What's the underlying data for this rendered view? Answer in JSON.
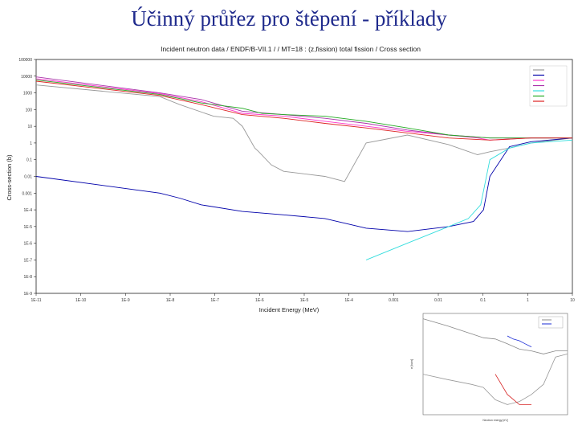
{
  "slide": {
    "title": "Účinný průřez pro štěpení - příklady"
  },
  "chart_data": [
    {
      "type": "line",
      "title": "Incident neutron data / ENDF/B-VII.1 / / MT=18 : (z,fission) total fission / Cross section",
      "xlabel": "Incident Energy (MeV)",
      "ylabel": "Cross-section (b)",
      "xscale": "log",
      "yscale": "log",
      "xlim": [
        1e-11,
        100
      ],
      "ylim": [
        1e-09,
        100000
      ],
      "legend_position": "top-right",
      "grid": false,
      "xtick_labels": [
        "1E-11",
        "1E-10",
        "1E-9",
        "1E-8",
        "1E-7",
        "1E-6",
        "1E-5",
        "1E-4",
        "0.001",
        "0.01",
        "0.1",
        "1",
        "10"
      ],
      "ytick_labels": [
        "1E-9",
        "1E-8",
        "1E-7",
        "1E-6",
        "1E-5",
        "1E-4",
        "0.001",
        "0.01",
        "0.1",
        "1",
        "10",
        "100",
        "1000",
        "10000",
        "100000"
      ],
      "series": [
        {
          "name": "",
          "color": "#999999",
          "points": [
            [
              1e-11,
              3000
            ],
            [
              1e-08,
              600
            ],
            [
              3e-08,
              200
            ],
            [
              2e-07,
              40
            ],
            [
              6e-07,
              30
            ],
            [
              1e-06,
              10
            ],
            [
              2e-06,
              0.5
            ],
            [
              2.5e-06,
              0.3
            ],
            [
              5e-06,
              0.05
            ],
            [
              1e-05,
              0.02
            ],
            [
              0.0001,
              0.01
            ],
            [
              0.0003,
              0.005
            ],
            [
              0.001,
              1
            ],
            [
              0.01,
              3
            ],
            [
              0.1,
              0.8
            ],
            [
              0.5,
              0.2
            ],
            [
              1,
              0.3
            ],
            [
              3,
              0.5
            ],
            [
              10,
              1
            ],
            [
              100,
              2
            ]
          ]
        },
        {
          "name": "",
          "color": "#0000aa",
          "points": [
            [
              1e-11,
              0.01
            ],
            [
              1e-08,
              0.001
            ],
            [
              3e-08,
              0.0005
            ],
            [
              1e-07,
              0.0002
            ],
            [
              1e-06,
              8e-05
            ],
            [
              1e-05,
              5e-05
            ],
            [
              0.0001,
              3e-05
            ],
            [
              0.001,
              8e-06
            ],
            [
              0.01,
              5e-06
            ],
            [
              0.1,
              1e-05
            ],
            [
              0.4,
              2e-05
            ],
            [
              0.7,
              0.0001
            ],
            [
              1,
              0.01
            ],
            [
              3,
              0.6
            ],
            [
              10,
              1.2
            ],
            [
              100,
              2
            ]
          ]
        },
        {
          "name": "",
          "color": "#ff33cc",
          "points": [
            [
              1e-11,
              7000
            ],
            [
              1e-08,
              900
            ],
            [
              1e-07,
              300
            ],
            [
              1e-06,
              60
            ],
            [
              1e-05,
              40
            ],
            [
              0.0001,
              20
            ],
            [
              0.001,
              10
            ],
            [
              0.01,
              5
            ],
            [
              0.1,
              3
            ],
            [
              0.5,
              2
            ],
            [
              1,
              1.5
            ],
            [
              10,
              2
            ],
            [
              100,
              2
            ]
          ]
        },
        {
          "name": "",
          "color": "#aa33aa",
          "points": [
            [
              1e-11,
              9000
            ],
            [
              1e-08,
              1000
            ],
            [
              1e-07,
              400
            ],
            [
              1e-06,
              80
            ],
            [
              1e-05,
              50
            ],
            [
              0.0001,
              30
            ],
            [
              0.001,
              15
            ],
            [
              0.01,
              6
            ],
            [
              0.1,
              3
            ],
            [
              1,
              2
            ],
            [
              10,
              2
            ],
            [
              100,
              2
            ]
          ]
        },
        {
          "name": "",
          "color": "#33dddd",
          "points": [
            [
              0.001,
              1e-07
            ],
            [
              0.01,
              1e-06
            ],
            [
              0.1,
              1e-05
            ],
            [
              0.3,
              3e-05
            ],
            [
              0.6,
              0.0002
            ],
            [
              1,
              0.1
            ],
            [
              3,
              0.5
            ],
            [
              10,
              1
            ],
            [
              100,
              1.5
            ]
          ]
        },
        {
          "name": "",
          "color": "#22aa22",
          "points": [
            [
              1e-11,
              6000
            ],
            [
              1e-08,
              800
            ],
            [
              1e-07,
              250
            ],
            [
              1e-06,
              120
            ],
            [
              3e-06,
              60
            ],
            [
              1e-05,
              50
            ],
            [
              0.0001,
              40
            ],
            [
              0.001,
              20
            ],
            [
              0.01,
              8
            ],
            [
              0.1,
              3
            ],
            [
              1,
              2
            ],
            [
              10,
              2
            ],
            [
              100,
              2
            ]
          ]
        },
        {
          "name": "",
          "color": "#dd2222",
          "points": [
            [
              1e-11,
              5000
            ],
            [
              1e-08,
              700
            ],
            [
              1e-07,
              200
            ],
            [
              1e-06,
              50
            ],
            [
              1e-05,
              30
            ],
            [
              0.0001,
              15
            ],
            [
              0.001,
              8
            ],
            [
              0.01,
              4
            ],
            [
              0.1,
              2
            ],
            [
              1,
              1.5
            ],
            [
              10,
              2
            ],
            [
              100,
              2
            ]
          ]
        }
      ]
    },
    {
      "type": "line",
      "title": "",
      "xlabel": "Neutron energy [eV]",
      "ylabel": "σ [barn]",
      "xscale": "log",
      "yscale": "log",
      "legend_position": "top-right",
      "series": [
        {
          "name": "",
          "color": "#888888",
          "points": [
            [
              1e-05,
              3000
            ],
            [
              0.001,
              600
            ],
            [
              0.1,
              100
            ],
            [
              1,
              40
            ],
            [
              10,
              30
            ],
            [
              100,
              10
            ],
            [
              1000,
              3
            ],
            [
              10000.0,
              2
            ],
            [
              100000.0,
              1
            ],
            [
              1000000.0,
              2
            ],
            [
              10000000.0,
              2
            ]
          ]
        },
        {
          "name": "",
          "color": "#1a2bd6",
          "points": [
            [
              100,
              60
            ],
            [
              300,
              30
            ],
            [
              1000,
              20
            ],
            [
              3000,
              10
            ],
            [
              10000.0,
              5
            ]
          ]
        },
        {
          "name": "",
          "color": "#999999",
          "points": [
            [
              1e-05,
              0.01
            ],
            [
              0.001,
              0.003
            ],
            [
              0.1,
              0.001
            ],
            [
              1,
              0.0005
            ],
            [
              10,
              3e-05
            ],
            [
              100,
              1e-05
            ],
            [
              1000,
              2e-05
            ],
            [
              10000.0,
              0.0001
            ],
            [
              100000.0,
              0.001
            ],
            [
              1000000.0,
              0.5
            ],
            [
              10000000.0,
              1
            ]
          ]
        },
        {
          "name": "",
          "color": "#d62020",
          "points": [
            [
              10,
              0.01
            ],
            [
              100,
              0.0001
            ],
            [
              1000,
              1e-05
            ],
            [
              10000.0,
              1e-05
            ]
          ]
        }
      ]
    }
  ]
}
